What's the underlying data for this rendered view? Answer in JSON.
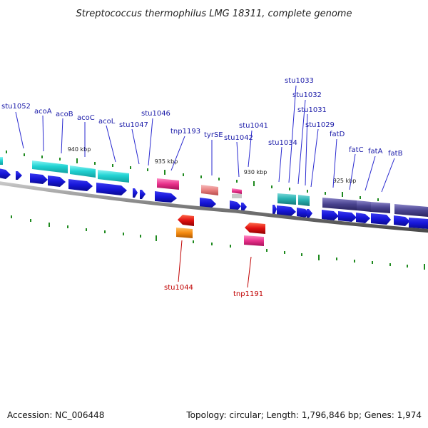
{
  "title": "Streptococcus thermophilus LMG 18311, complete genome",
  "footer": {
    "accession": "Accession: NC_006448",
    "stats": "Topology: circular; Length: 1,796,846 bp; Genes: 1,974"
  },
  "scale_labels": [
    "940 kbp",
    "935 kbp",
    "930 kbp",
    "925 kbp"
  ],
  "gene_labels_top": [
    "stu1052",
    "acoA",
    "acoB",
    "acoC",
    "acoL",
    "stu1047",
    "stu1046",
    "tnp1193",
    "tyrSE",
    "stu1042",
    "stu1041",
    "stu1034",
    "stu1033",
    "stu1032",
    "stu1031",
    "stu1029",
    "fatD",
    "fatC",
    "fatA",
    "fatB"
  ],
  "gene_labels_bottom": [
    "stu1044",
    "tnp1191"
  ],
  "colors": {
    "backbone": "#8a8a8a",
    "cds": "#1a1ad8",
    "cyan": "#22d3d3",
    "teal": "#2ab3b3",
    "pink": "#e8308a",
    "salmon": "#e88a8a",
    "red": "#dd1010",
    "orange": "#f58a10",
    "purple": "#4a4490",
    "tick": "#1f8a1f",
    "label_blue": "#1a1aa8",
    "label_red": "#c00000"
  }
}
